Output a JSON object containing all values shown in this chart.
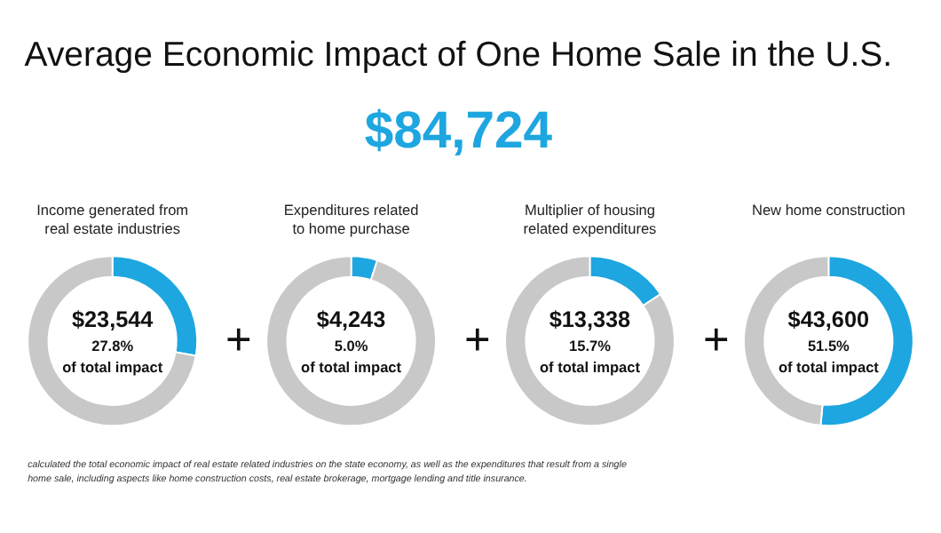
{
  "chart_data": [
    {
      "type": "other",
      "title": "Average Economic Impact of One Home Sale in the U.S.",
      "subtitle": "$84,724",
      "annotations": [
        "calculated the total economic impact of real estate related industries on the state economy, as well as the expenditures that result from a single home sale, including aspects like home construction costs, real estate brokerage, mortgage lending and title insurance."
      ]
    },
    {
      "type": "donut",
      "title": "Income generated from real estate industries",
      "categories": [
        null,
        null
      ],
      "values": [
        27.8,
        72.2
      ],
      "colors": [
        "#1ea6e0",
        "#c8c8c8"
      ],
      "annotations": [
        "$23,544",
        "27.8%",
        "of total impact"
      ]
    },
    {
      "type": "donut",
      "title": "Expenditures related to home purchase",
      "categories": [
        null,
        null
      ],
      "values": [
        5.0,
        95.0
      ],
      "colors": [
        "#1ea6e0",
        "#c8c8c8"
      ],
      "annotations": [
        "$4,243",
        "5.0%",
        "of total impact",
        "+"
      ]
    },
    {
      "type": "donut",
      "title": "Multiplier of housing related expenditures",
      "categories": [
        null,
        null
      ],
      "values": [
        15.7,
        84.3
      ],
      "colors": [
        "#1ea6e0",
        "#c8c8c8"
      ],
      "annotations": [
        "$13,338",
        "15.7%",
        "of total impact",
        "+"
      ]
    },
    {
      "type": "donut",
      "title": "New home construction",
      "categories": [
        null,
        null
      ],
      "values": [
        51.5,
        48.5
      ],
      "colors": [
        "#1ea6e0",
        "#c8c8c8"
      ],
      "annotations": [
        "$43,600",
        "51.5%",
        "of total impact",
        "+"
      ]
    }
  ]
}
